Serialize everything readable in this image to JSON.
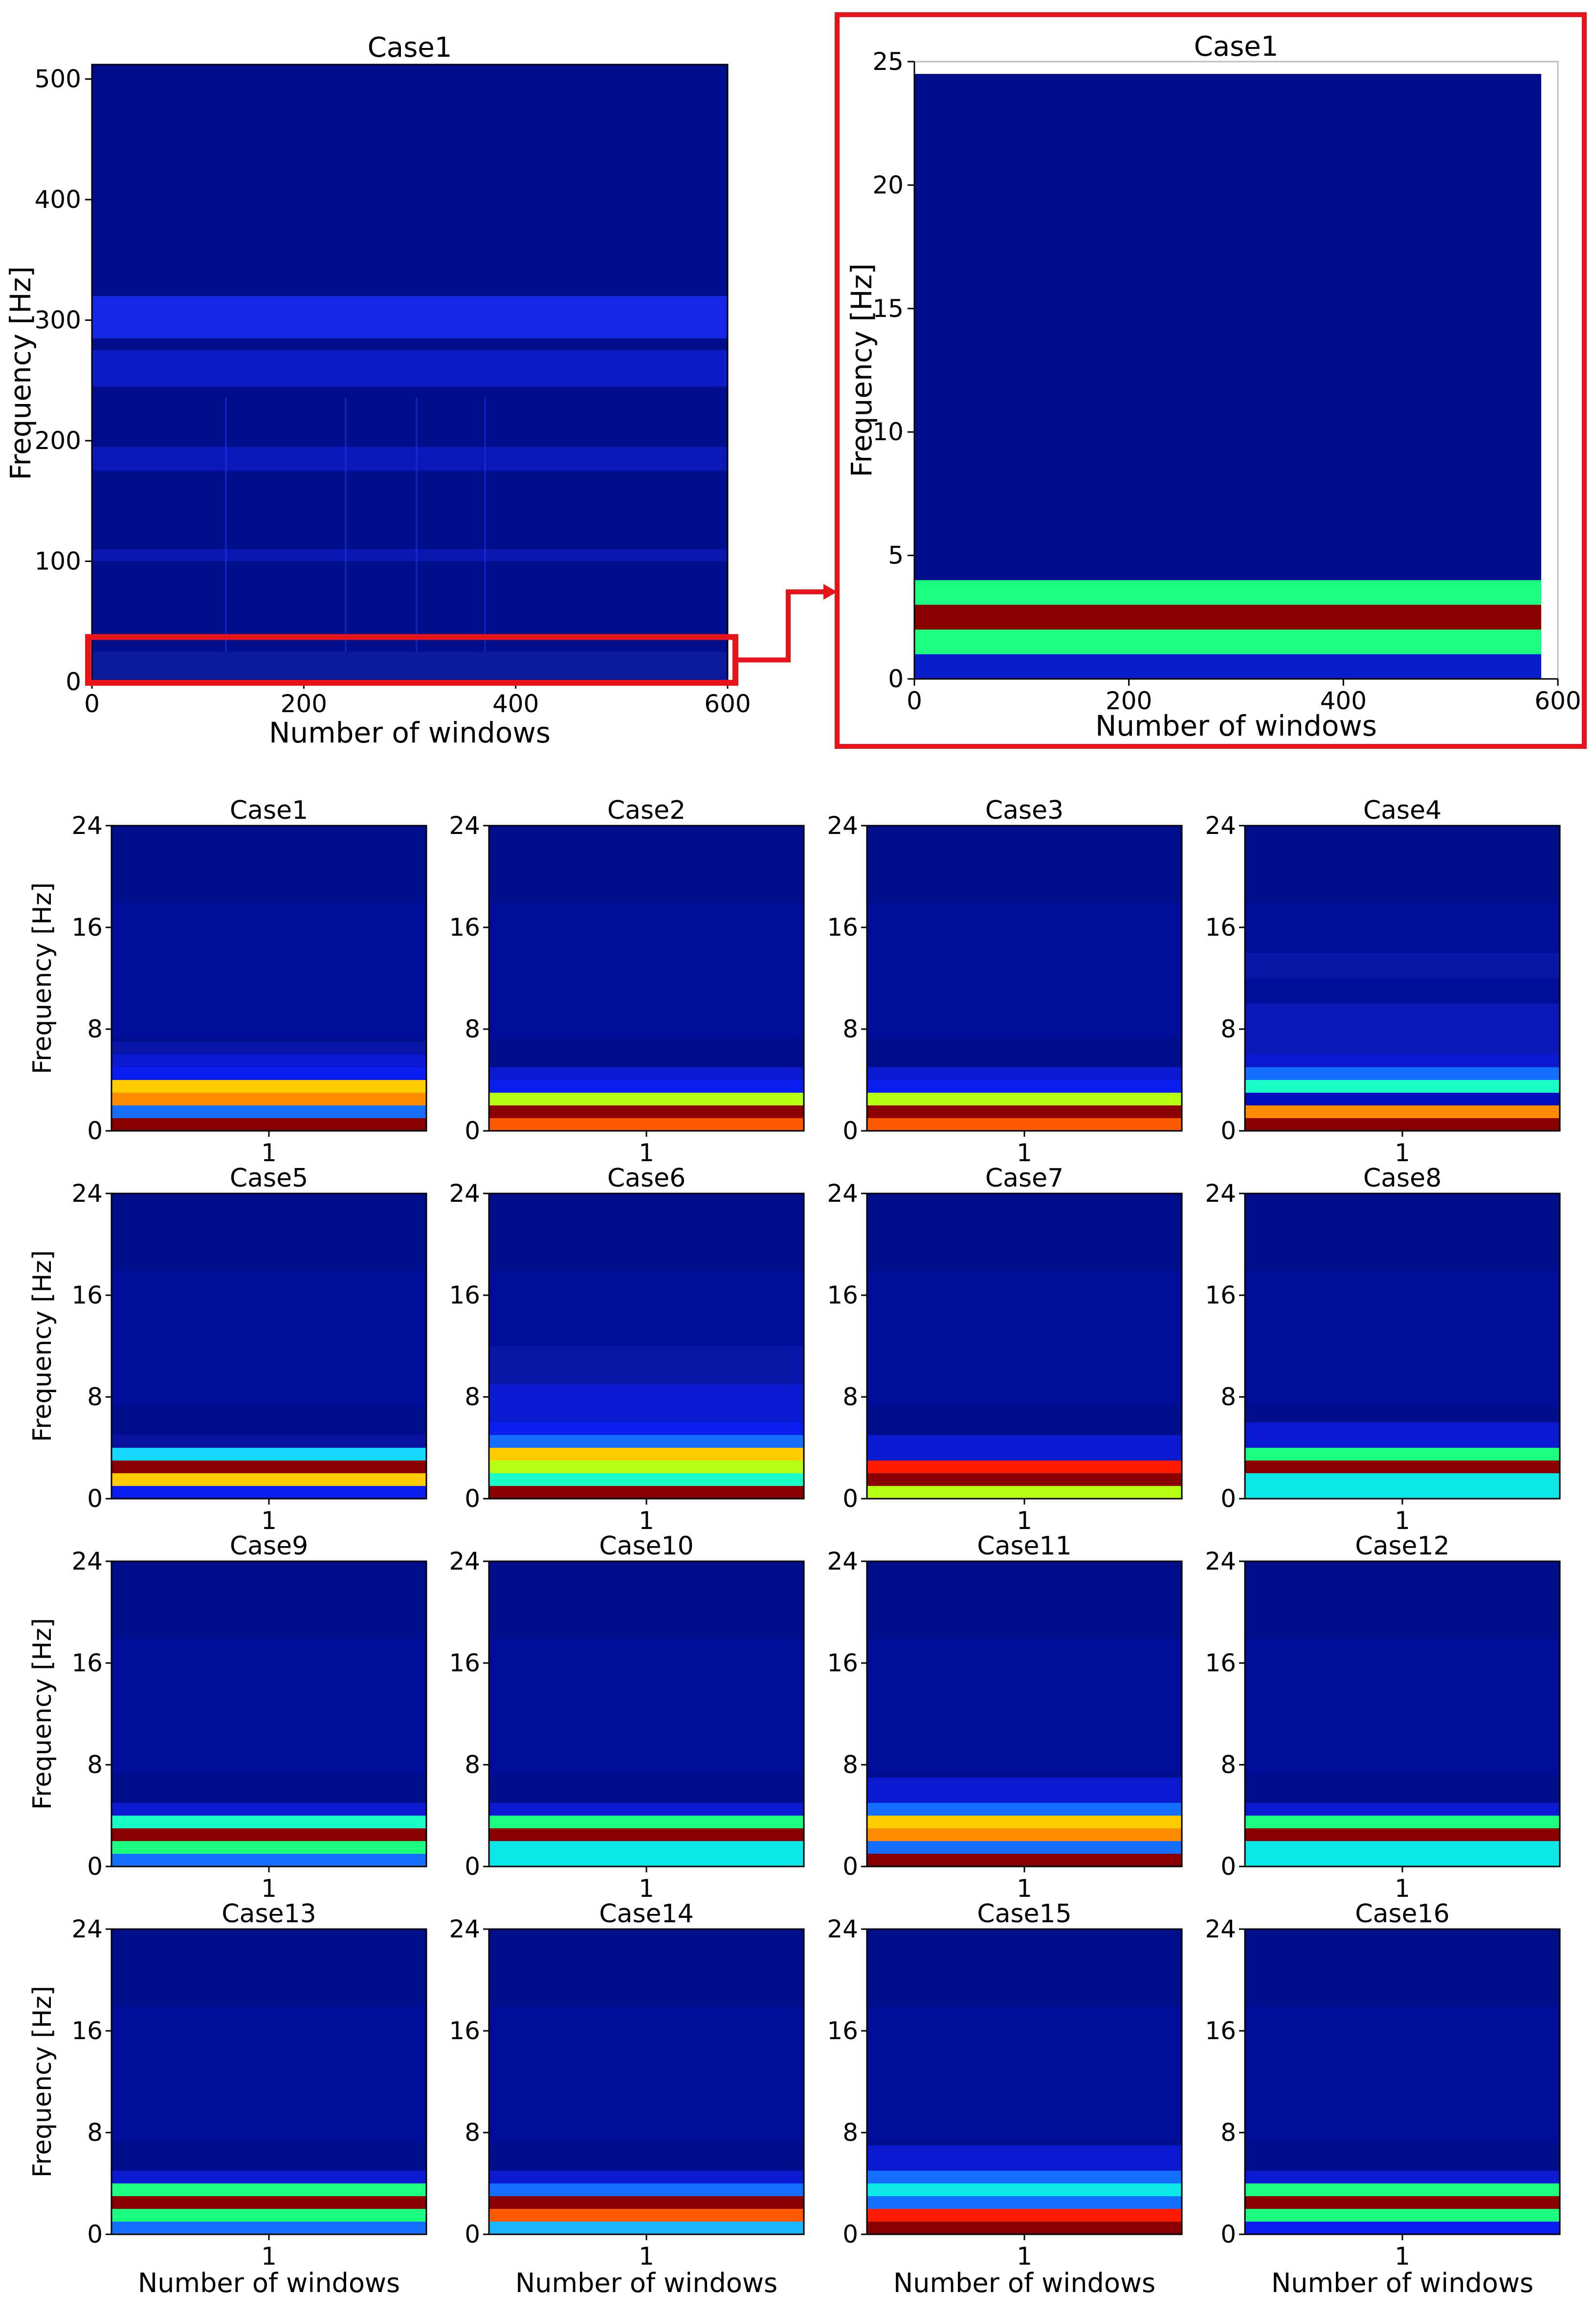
{
  "figure": {
    "arrow_color": "#e8141a",
    "highlight_color": "#e8141a"
  },
  "chart_data": [
    {
      "id": "overview",
      "type": "heatmap",
      "title": "Case1",
      "xlabel": "Number of windows",
      "ylabel": "Frequency [Hz]",
      "xlim": [
        0,
        600
      ],
      "ylim": [
        0,
        512
      ],
      "xticks": [
        "0",
        "200",
        "400",
        "600"
      ],
      "yticks": [
        "0",
        "100",
        "200",
        "300",
        "400",
        "500"
      ],
      "bands": [
        {
          "lo": 0,
          "hi": 25,
          "color": "#0a1a9a"
        },
        {
          "lo": 100,
          "hi": 110,
          "color": "#0a16b0"
        },
        {
          "lo": 175,
          "hi": 195,
          "color": "#0a18b8"
        },
        {
          "lo": 245,
          "hi": 275,
          "color": "#0d1ec8"
        },
        {
          "lo": 285,
          "hi": 320,
          "color": "#1428e6"
        }
      ],
      "highlight_range_hz": [
        0,
        25
      ]
    },
    {
      "id": "zoom",
      "type": "heatmap",
      "title": "Case1",
      "xlabel": "Number of windows",
      "ylabel": "Frequency [Hz]",
      "xlim": [
        0,
        600
      ],
      "ylim": [
        0,
        25
      ],
      "xticks": [
        "0",
        "200",
        "400",
        "600"
      ],
      "yticks": [
        "0",
        "5",
        "10",
        "15",
        "20",
        "25"
      ],
      "bands": [
        {
          "lo": 0,
          "hi": 1,
          "color": "#0a1ecc"
        },
        {
          "lo": 1,
          "hi": 2,
          "color": "#1aff80"
        },
        {
          "lo": 2,
          "hi": 3,
          "color": "#8a0000"
        },
        {
          "lo": 3,
          "hi": 4,
          "color": "#1aff80"
        },
        {
          "lo": 4,
          "hi": 24.5,
          "color": "#000e8c"
        }
      ]
    },
    {
      "id": "case1",
      "type": "heatmap",
      "title": "Case1",
      "xlabel": "1",
      "ylabel": "Frequency [Hz]",
      "ylim": [
        0,
        24
      ],
      "yticks": [
        "0",
        "8",
        "16",
        "24"
      ],
      "bands": [
        {
          "lo": 0,
          "hi": 1,
          "color": "#8a0000"
        },
        {
          "lo": 1,
          "hi": 2,
          "color": "#1670ff"
        },
        {
          "lo": 2,
          "hi": 3,
          "color": "#ff8c00"
        },
        {
          "lo": 3,
          "hi": 4,
          "color": "#ffcc00"
        },
        {
          "lo": 4,
          "hi": 5,
          "color": "#0a1ef0"
        },
        {
          "lo": 5,
          "hi": 6,
          "color": "#0a1ad0"
        },
        {
          "lo": 6,
          "hi": 7,
          "color": "#0a16a8"
        }
      ]
    },
    {
      "id": "case2",
      "type": "heatmap",
      "title": "Case2",
      "xlabel": "1",
      "ylabel": "",
      "ylim": [
        0,
        24
      ],
      "yticks": [
        "0",
        "8",
        "16",
        "24"
      ],
      "bands": [
        {
          "lo": 0,
          "hi": 1,
          "color": "#ff5a00"
        },
        {
          "lo": 1,
          "hi": 2,
          "color": "#8a0000"
        },
        {
          "lo": 2,
          "hi": 3,
          "color": "#b4ff14"
        },
        {
          "lo": 3,
          "hi": 4,
          "color": "#0a1ef0"
        },
        {
          "lo": 4,
          "hi": 5,
          "color": "#0a1ad0"
        }
      ]
    },
    {
      "id": "case3",
      "type": "heatmap",
      "title": "Case3",
      "xlabel": "1",
      "ylabel": "",
      "ylim": [
        0,
        24
      ],
      "yticks": [
        "0",
        "8",
        "16",
        "24"
      ],
      "bands": [
        {
          "lo": 0,
          "hi": 1,
          "color": "#ff5a00"
        },
        {
          "lo": 1,
          "hi": 2,
          "color": "#8a0000"
        },
        {
          "lo": 2,
          "hi": 3,
          "color": "#b4ff14"
        },
        {
          "lo": 3,
          "hi": 4,
          "color": "#0a1ef0"
        },
        {
          "lo": 4,
          "hi": 5,
          "color": "#0a1ad0"
        }
      ]
    },
    {
      "id": "case4",
      "type": "heatmap",
      "title": "Case4",
      "xlabel": "1",
      "ylabel": "",
      "ylim": [
        0,
        24
      ],
      "yticks": [
        "0",
        "8",
        "16",
        "24"
      ],
      "bands": [
        {
          "lo": 0,
          "hi": 1,
          "color": "#8a0000"
        },
        {
          "lo": 1,
          "hi": 2,
          "color": "#ff8c00"
        },
        {
          "lo": 2,
          "hi": 3,
          "color": "#000ec0"
        },
        {
          "lo": 3,
          "hi": 4,
          "color": "#1affc8"
        },
        {
          "lo": 4,
          "hi": 5,
          "color": "#1670ff"
        },
        {
          "lo": 5,
          "hi": 6,
          "color": "#0a1ad0"
        },
        {
          "lo": 6,
          "hi": 10,
          "color": "#0a18b8"
        },
        {
          "lo": 12,
          "hi": 14,
          "color": "#0a16a8"
        }
      ]
    },
    {
      "id": "case5",
      "type": "heatmap",
      "title": "Case5",
      "xlabel": "1",
      "ylabel": "Frequency [Hz]",
      "ylim": [
        0,
        24
      ],
      "yticks": [
        "0",
        "8",
        "16",
        "24"
      ],
      "bands": [
        {
          "lo": 0,
          "hi": 1,
          "color": "#0a1ef0"
        },
        {
          "lo": 1,
          "hi": 2,
          "color": "#ffcc00"
        },
        {
          "lo": 2,
          "hi": 3,
          "color": "#8a0000"
        },
        {
          "lo": 3,
          "hi": 4,
          "color": "#14d8ff"
        },
        {
          "lo": 4,
          "hi": 5,
          "color": "#0a14a0"
        }
      ]
    },
    {
      "id": "case6",
      "type": "heatmap",
      "title": "Case6",
      "xlabel": "1",
      "ylabel": "",
      "ylim": [
        0,
        24
      ],
      "yticks": [
        "0",
        "8",
        "16",
        "24"
      ],
      "bands": [
        {
          "lo": 0,
          "hi": 1,
          "color": "#8a0000"
        },
        {
          "lo": 1,
          "hi": 2,
          "color": "#1affc8"
        },
        {
          "lo": 2,
          "hi": 3,
          "color": "#b4ff14"
        },
        {
          "lo": 3,
          "hi": 4,
          "color": "#ffcc00"
        },
        {
          "lo": 4,
          "hi": 5,
          "color": "#1670ff"
        },
        {
          "lo": 5,
          "hi": 6,
          "color": "#0a1ef0"
        },
        {
          "lo": 6,
          "hi": 9,
          "color": "#0a1ad0"
        },
        {
          "lo": 9,
          "hi": 12,
          "color": "#0a16a8"
        }
      ]
    },
    {
      "id": "case7",
      "type": "heatmap",
      "title": "Case7",
      "xlabel": "1",
      "ylabel": "",
      "ylim": [
        0,
        24
      ],
      "yticks": [
        "0",
        "8",
        "16",
        "24"
      ],
      "bands": [
        {
          "lo": 0,
          "hi": 1,
          "color": "#b4ff14"
        },
        {
          "lo": 1,
          "hi": 2,
          "color": "#8a0000"
        },
        {
          "lo": 2,
          "hi": 3,
          "color": "#ff1a00"
        },
        {
          "lo": 3,
          "hi": 5,
          "color": "#0a1ad0"
        }
      ]
    },
    {
      "id": "case8",
      "type": "heatmap",
      "title": "Case8",
      "xlabel": "1",
      "ylabel": "",
      "ylim": [
        0,
        24
      ],
      "yticks": [
        "0",
        "8",
        "16",
        "24"
      ],
      "bands": [
        {
          "lo": 0,
          "hi": 2,
          "color": "#0ce8e8"
        },
        {
          "lo": 2,
          "hi": 3,
          "color": "#8a0000"
        },
        {
          "lo": 3,
          "hi": 4,
          "color": "#1aff80"
        },
        {
          "lo": 4,
          "hi": 6,
          "color": "#0a1ad0"
        }
      ]
    },
    {
      "id": "case9",
      "type": "heatmap",
      "title": "Case9",
      "xlabel": "1",
      "ylabel": "Frequency [Hz]",
      "ylim": [
        0,
        24
      ],
      "yticks": [
        "0",
        "8",
        "16",
        "24"
      ],
      "bands": [
        {
          "lo": 0,
          "hi": 1,
          "color": "#1670ff"
        },
        {
          "lo": 1,
          "hi": 2,
          "color": "#1aff80"
        },
        {
          "lo": 2,
          "hi": 3,
          "color": "#8a0000"
        },
        {
          "lo": 3,
          "hi": 4,
          "color": "#1affc8"
        },
        {
          "lo": 4,
          "hi": 5,
          "color": "#0a1ad0"
        }
      ]
    },
    {
      "id": "case10",
      "type": "heatmap",
      "title": "Case10",
      "xlabel": "1",
      "ylabel": "",
      "ylim": [
        0,
        24
      ],
      "yticks": [
        "0",
        "8",
        "16",
        "24"
      ],
      "bands": [
        {
          "lo": 0,
          "hi": 2,
          "color": "#0ce8e8"
        },
        {
          "lo": 2,
          "hi": 3,
          "color": "#8a0000"
        },
        {
          "lo": 3,
          "hi": 4,
          "color": "#1aff80"
        },
        {
          "lo": 4,
          "hi": 5,
          "color": "#0a1ad0"
        }
      ]
    },
    {
      "id": "case11",
      "type": "heatmap",
      "title": "Case11",
      "xlabel": "1",
      "ylabel": "",
      "ylim": [
        0,
        24
      ],
      "yticks": [
        "0",
        "8",
        "16",
        "24"
      ],
      "bands": [
        {
          "lo": 0,
          "hi": 1,
          "color": "#8a0000"
        },
        {
          "lo": 1,
          "hi": 2,
          "color": "#1670ff"
        },
        {
          "lo": 2,
          "hi": 3,
          "color": "#ff8c00"
        },
        {
          "lo": 3,
          "hi": 4,
          "color": "#ffcc00"
        },
        {
          "lo": 4,
          "hi": 5,
          "color": "#1670ff"
        },
        {
          "lo": 5,
          "hi": 7,
          "color": "#0a1ad0"
        }
      ]
    },
    {
      "id": "case12",
      "type": "heatmap",
      "title": "Case12",
      "xlabel": "1",
      "ylabel": "",
      "ylim": [
        0,
        24
      ],
      "yticks": [
        "0",
        "8",
        "16",
        "24"
      ],
      "bands": [
        {
          "lo": 0,
          "hi": 2,
          "color": "#0ce8e8"
        },
        {
          "lo": 2,
          "hi": 3,
          "color": "#8a0000"
        },
        {
          "lo": 3,
          "hi": 4,
          "color": "#1aff80"
        },
        {
          "lo": 4,
          "hi": 5,
          "color": "#0a1ad0"
        }
      ]
    },
    {
      "id": "case13",
      "type": "heatmap",
      "title": "Case13",
      "xlabel": "Number of windows",
      "tick": "1",
      "ylabel": "Frequency [Hz]",
      "ylim": [
        0,
        24
      ],
      "yticks": [
        "0",
        "8",
        "16",
        "24"
      ],
      "bands": [
        {
          "lo": 0,
          "hi": 1,
          "color": "#1670ff"
        },
        {
          "lo": 1,
          "hi": 2,
          "color": "#1aff80"
        },
        {
          "lo": 2,
          "hi": 3,
          "color": "#8a0000"
        },
        {
          "lo": 3,
          "hi": 4,
          "color": "#1aff80"
        },
        {
          "lo": 4,
          "hi": 5,
          "color": "#0a1ad0"
        }
      ]
    },
    {
      "id": "case14",
      "type": "heatmap",
      "title": "Case14",
      "xlabel": "Number of windows",
      "tick": "1",
      "ylabel": "",
      "ylim": [
        0,
        24
      ],
      "yticks": [
        "0",
        "8",
        "16",
        "24"
      ],
      "bands": [
        {
          "lo": 0,
          "hi": 1,
          "color": "#1ab4ff"
        },
        {
          "lo": 1,
          "hi": 2,
          "color": "#ff5a00"
        },
        {
          "lo": 2,
          "hi": 3,
          "color": "#8a0000"
        },
        {
          "lo": 3,
          "hi": 4,
          "color": "#1670ff"
        },
        {
          "lo": 4,
          "hi": 5,
          "color": "#0a1ad0"
        }
      ]
    },
    {
      "id": "case15",
      "type": "heatmap",
      "title": "Case15",
      "xlabel": "Number of windows",
      "tick": "1",
      "ylabel": "",
      "ylim": [
        0,
        24
      ],
      "yticks": [
        "0",
        "8",
        "16",
        "24"
      ],
      "bands": [
        {
          "lo": 0,
          "hi": 1,
          "color": "#8a0000"
        },
        {
          "lo": 1,
          "hi": 2,
          "color": "#ff1a00"
        },
        {
          "lo": 2,
          "hi": 3,
          "color": "#1670ff"
        },
        {
          "lo": 3,
          "hi": 4,
          "color": "#0ce8e8"
        },
        {
          "lo": 4,
          "hi": 5,
          "color": "#1670ff"
        },
        {
          "lo": 5,
          "hi": 7,
          "color": "#0a1ad0"
        }
      ]
    },
    {
      "id": "case16",
      "type": "heatmap",
      "title": "Case16",
      "xlabel": "Number of windows",
      "tick": "1",
      "ylabel": "",
      "ylim": [
        0,
        24
      ],
      "yticks": [
        "0",
        "8",
        "16",
        "24"
      ],
      "bands": [
        {
          "lo": 0,
          "hi": 1,
          "color": "#0a1ef0"
        },
        {
          "lo": 1,
          "hi": 2,
          "color": "#1aff80"
        },
        {
          "lo": 2,
          "hi": 3,
          "color": "#8a0000"
        },
        {
          "lo": 3,
          "hi": 4,
          "color": "#1aff80"
        },
        {
          "lo": 4,
          "hi": 5,
          "color": "#0a1ad0"
        }
      ]
    }
  ]
}
